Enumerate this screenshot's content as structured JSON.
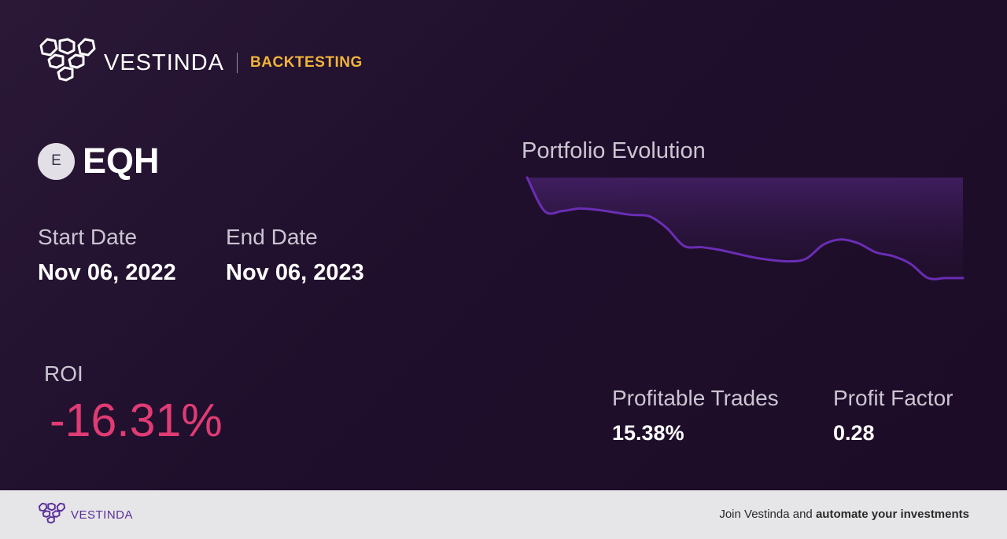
{
  "brand": {
    "name": "VESTINDA",
    "tag": "BACKTESTING"
  },
  "ticker": {
    "badge": "E",
    "symbol": "EQH"
  },
  "dates": {
    "start_label": "Start Date",
    "start_value": "Nov 06, 2022",
    "end_label": "End Date",
    "end_value": "Nov 06, 2023"
  },
  "roi": {
    "label": "ROI",
    "value": "-16.31%"
  },
  "stats": {
    "profitable_trades_label": "Profitable Trades",
    "profitable_trades_value": "15.38%",
    "profit_factor_label": "Profit Factor",
    "profit_factor_value": "0.28"
  },
  "chart_data": {
    "type": "area",
    "title": "Portfolio Evolution",
    "series": [
      {
        "values": [
          100,
          74,
          74,
          76,
          75,
          73,
          71,
          70,
          61,
          47,
          46,
          44,
          41,
          38,
          36,
          35,
          37,
          48,
          52,
          49,
          42,
          39,
          33,
          22,
          22,
          22
        ]
      }
    ]
  },
  "colors": {
    "accent": "#6a2db4",
    "roi_negative": "#e03b74",
    "brand_tag": "#f2b43a",
    "footer_brand": "#5b2d9a"
  },
  "footer": {
    "brand_name": "VESTINDA",
    "cta_prefix": "Join Vestinda and ",
    "cta_bold": "automate your investments"
  }
}
